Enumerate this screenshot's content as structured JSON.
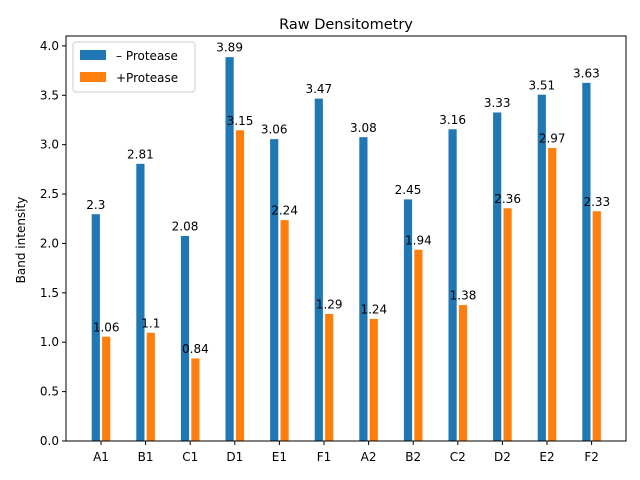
{
  "colors": {
    "series_1": "#1f77b4",
    "series_2": "#ff7f0e",
    "axis": "#000000",
    "legend_border": "#cccccc"
  },
  "chart_data": {
    "type": "bar",
    "title": "Raw Densitometry",
    "xlabel": "",
    "ylabel": "Band intensity",
    "ylim": [
      0,
      4.0
    ],
    "yticks": [
      "0.0",
      "0.5",
      "1.0",
      "1.5",
      "2.0",
      "2.5",
      "3.0",
      "3.5",
      "4.0"
    ],
    "grid": false,
    "legend_position": "upper-left",
    "categories": [
      "A1",
      "B1",
      "C1",
      "D1",
      "E1",
      "F1",
      "A2",
      "B2",
      "C2",
      "D2",
      "E2",
      "F2"
    ],
    "series": [
      {
        "name": "– Protease",
        "color": "#1f77b4",
        "values": [
          2.3,
          2.81,
          2.08,
          3.89,
          3.06,
          3.47,
          3.08,
          2.45,
          3.16,
          3.33,
          3.51,
          3.63
        ],
        "labels": [
          "2.3",
          "2.81",
          "2.08",
          "3.89",
          "3.06",
          "3.47",
          "3.08",
          "2.45",
          "3.16",
          "3.33",
          "3.51",
          "3.63"
        ]
      },
      {
        "name": "+Protease",
        "color": "#ff7f0e",
        "values": [
          1.06,
          1.1,
          0.84,
          3.15,
          2.24,
          1.29,
          1.24,
          1.94,
          1.38,
          2.36,
          2.97,
          2.33
        ],
        "labels": [
          "1.06",
          "1.1",
          "0.84",
          "3.15",
          "2.24",
          "1.29",
          "1.24",
          "1.94",
          "1.38",
          "2.36",
          "2.97",
          "2.33"
        ]
      }
    ]
  }
}
